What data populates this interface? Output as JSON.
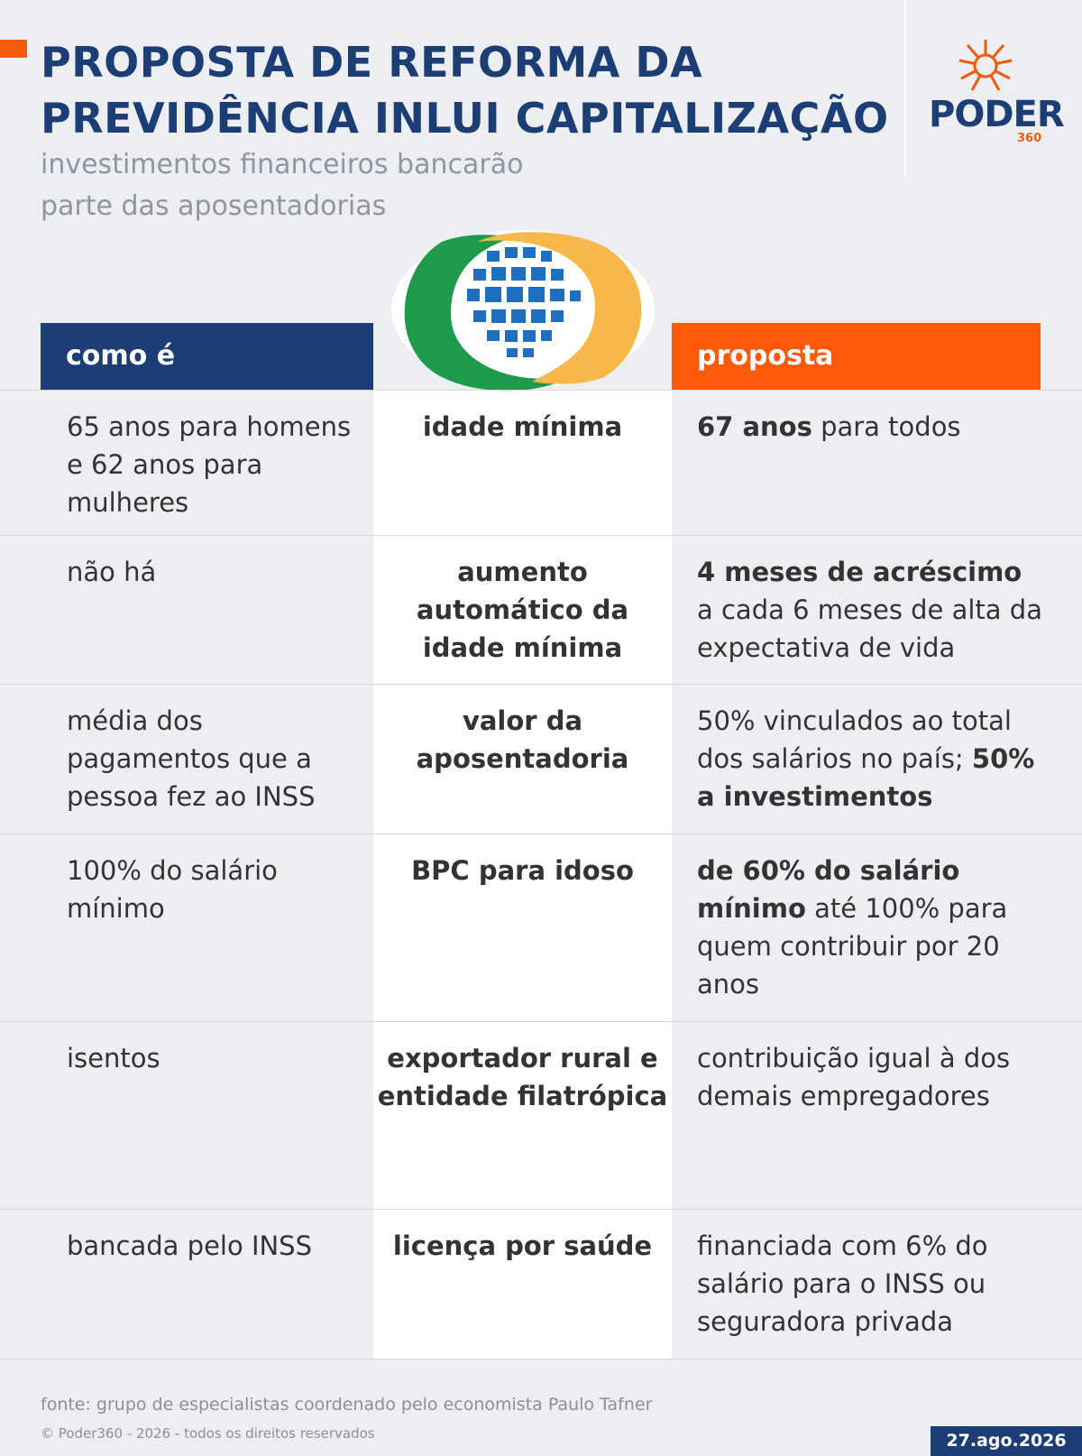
{
  "header": {
    "title_lines": [
      "PROPOSTA DE REFORMA DA",
      "PREVIDÊNCIA INLUI CAPITALIZAÇÃO"
    ],
    "subtitle_lines": [
      "investimentos financeiros bancarão",
      "parte das aposentadorias"
    ],
    "logo": {
      "name": "PODER",
      "number": "360"
    }
  },
  "table": {
    "headers": {
      "current": "como é",
      "proposal": "proposta"
    },
    "rows": [
      {
        "current": "65 anos para homens e 62 anos para mulheres",
        "topic": "idade mínima",
        "proposal": [
          {
            "text": "67 anos",
            "bold": true
          },
          {
            "text": " para todos",
            "bold": false
          }
        ]
      },
      {
        "current": "não há",
        "topic": "aumento automático da idade mínima",
        "proposal": [
          {
            "text": "4 meses de acréscimo",
            "bold": true
          },
          {
            "text": " a cada 6 meses de alta da expectativa de vida",
            "bold": false
          }
        ]
      },
      {
        "current": "média dos pagamentos que a pessoa fez ao INSS",
        "topic": "valor da aposentadoria",
        "proposal": [
          {
            "text": "50% vinculados ao total dos salários no país; ",
            "bold": false
          },
          {
            "text": "50% a investimentos",
            "bold": true
          }
        ]
      },
      {
        "current": "100% do salário mínimo",
        "topic": "BPC para idoso",
        "proposal": [
          {
            "text": "de 60% do salário mínimo",
            "bold": true
          },
          {
            "text": " até 100% para quem contribuir por 20 anos",
            "bold": false
          }
        ]
      },
      {
        "current": "isentos",
        "topic": "exportador rural e entidade filatrópica",
        "proposal": [
          {
            "text": "contribuição igual à dos demais empregadores",
            "bold": false
          }
        ]
      },
      {
        "current": "bancada pelo INSS",
        "topic": "licença por saúde",
        "proposal": [
          {
            "text": "financiada com 6% do salário para o INSS ou seguradora privada",
            "bold": false
          }
        ]
      }
    ]
  },
  "footer": {
    "source": "fonte: grupo de especialistas coordenado pelo economista Paulo Tafner",
    "copyright": "© Poder360 - 2026 - todos os direitos reservados",
    "date": "27.ago.2026"
  }
}
